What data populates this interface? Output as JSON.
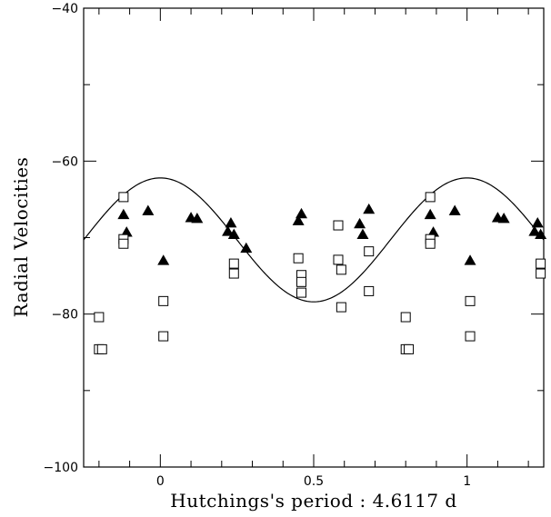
{
  "chart_data": {
    "type": "scatter",
    "title": "",
    "xlabel": "Hutchings's period : 4.6117 d",
    "ylabel": "Radial Velocities",
    "xlim": [
      -0.25,
      1.25
    ],
    "ylim": [
      -100,
      -40
    ],
    "x_ticks": [
      0,
      0.5,
      1
    ],
    "x_tick_labels": [
      "0",
      "0.5",
      "1"
    ],
    "y_ticks": [
      -100,
      -80,
      -60,
      -40
    ],
    "y_tick_labels": [
      "−100",
      "−80",
      "−60",
      "−40"
    ],
    "grid": false,
    "legend": "none",
    "series": [
      {
        "marker": "filled-triangle",
        "color": "#000000",
        "points": [
          [
            -0.12,
            -67.0
          ],
          [
            -0.11,
            -69.3
          ],
          [
            -0.04,
            -66.5
          ],
          [
            0.01,
            -73.0
          ],
          [
            0.1,
            -67.4
          ],
          [
            0.12,
            -67.5
          ],
          [
            0.22,
            -69.2
          ],
          [
            0.23,
            -68.1
          ],
          [
            0.24,
            -69.6
          ],
          [
            0.28,
            -71.4
          ],
          [
            0.45,
            -67.8
          ],
          [
            0.46,
            -66.9
          ],
          [
            0.65,
            -68.2
          ],
          [
            0.66,
            -69.6
          ],
          [
            0.68,
            -66.3
          ],
          [
            0.88,
            -67.0
          ],
          [
            0.89,
            -69.3
          ],
          [
            0.96,
            -66.5
          ],
          [
            1.01,
            -73.0
          ],
          [
            1.1,
            -67.4
          ],
          [
            1.12,
            -67.5
          ],
          [
            1.22,
            -69.2
          ],
          [
            1.23,
            -68.1
          ],
          [
            1.24,
            -69.6
          ]
        ]
      },
      {
        "marker": "open-square",
        "color": "#000000",
        "points": [
          [
            -0.2,
            -80.4
          ],
          [
            -0.2,
            -84.6
          ],
          [
            -0.19,
            -84.6
          ],
          [
            -0.12,
            -64.7
          ],
          [
            -0.12,
            -70.2
          ],
          [
            -0.12,
            -70.8
          ],
          [
            0.01,
            -78.3
          ],
          [
            0.01,
            -82.9
          ],
          [
            0.24,
            -73.4
          ],
          [
            0.24,
            -74.7
          ],
          [
            0.45,
            -72.7
          ],
          [
            0.46,
            -74.9
          ],
          [
            0.46,
            -75.8
          ],
          [
            0.46,
            -77.2
          ],
          [
            0.58,
            -68.4
          ],
          [
            0.58,
            -72.9
          ],
          [
            0.59,
            -74.2
          ],
          [
            0.59,
            -79.1
          ],
          [
            0.68,
            -71.8
          ],
          [
            0.68,
            -77.0
          ],
          [
            0.8,
            -80.4
          ],
          [
            0.8,
            -84.6
          ],
          [
            0.81,
            -84.6
          ],
          [
            0.88,
            -64.7
          ],
          [
            0.88,
            -70.2
          ],
          [
            0.88,
            -70.8
          ],
          [
            1.01,
            -78.3
          ],
          [
            1.01,
            -82.9
          ],
          [
            1.24,
            -73.4
          ],
          [
            1.24,
            -74.7
          ]
        ]
      }
    ],
    "fit_curve": {
      "type": "sine",
      "mean": -70.3,
      "amplitude": 8.1,
      "max_phase": 0.0
    }
  }
}
